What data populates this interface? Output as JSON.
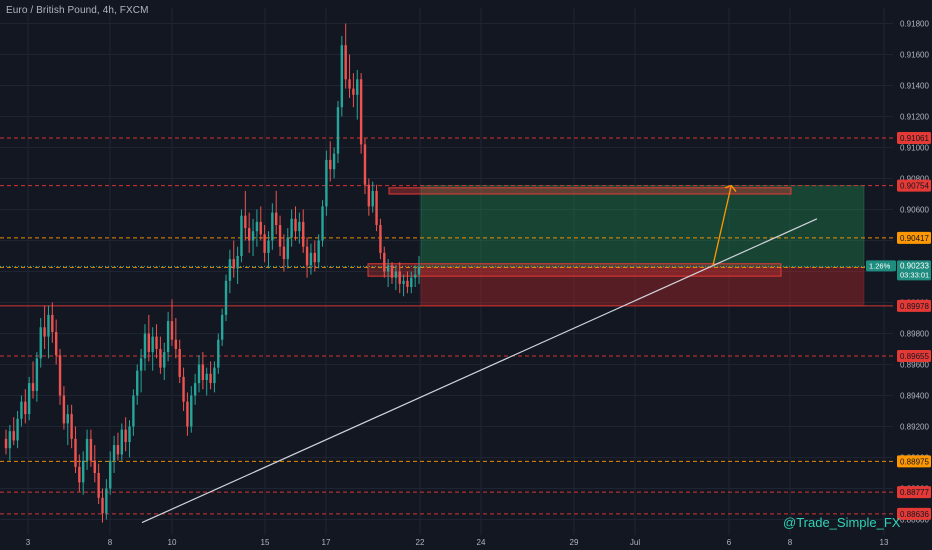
{
  "header": {
    "title": "Euro / British Pound, 4h, FXCM"
  },
  "watermark": "@Trade_Simple_FX",
  "colors": {
    "background": "#131722",
    "grid": "#1f2433",
    "text": "#b2b5be",
    "bull": "#26a69a",
    "bear": "#ef5350",
    "red_level": "#e53935",
    "orange_level": "#ff9800",
    "price_line": "#26a69a",
    "trendline": "#d1d4dc"
  },
  "chart_data": {
    "type": "candlestick",
    "symbol": "Euro / British Pound",
    "interval": "4h",
    "broker": "FXCM",
    "y_axis": {
      "range": [
        0.885,
        0.919
      ],
      "ticks": [
        "0.91800",
        "0.91600",
        "0.91400",
        "0.91200",
        "0.91000",
        "0.90800",
        "0.90600",
        "0.90400",
        "0.90200",
        "0.90000",
        "0.89800",
        "0.89600",
        "0.89400",
        "0.89200",
        "0.89000",
        "0.88800",
        "0.88600"
      ]
    },
    "x_axis": {
      "ticks": [
        "3",
        "8",
        "10",
        "15",
        "17",
        "22",
        "24",
        "29",
        "Jul",
        "6",
        "8",
        "13"
      ]
    },
    "grid": true,
    "horizontal_levels": [
      {
        "label": "0.91061",
        "value": 0.91061,
        "style": "red-dashed"
      },
      {
        "label": "0.90754",
        "value": 0.90754,
        "style": "red-dashed"
      },
      {
        "label": "0.90417",
        "value": 0.90417,
        "style": "orange-dashed"
      },
      {
        "label": "0.90227",
        "value": 0.90227,
        "style": "orange-dashed"
      },
      {
        "label": "0.89978",
        "value": 0.89978,
        "style": "red-solid"
      },
      {
        "label": "0.89655",
        "value": 0.89655,
        "style": "red-dashed"
      },
      {
        "label": "0.88975",
        "value": 0.88975,
        "style": "orange-dashed"
      },
      {
        "label": "0.88777",
        "value": 0.88777,
        "style": "red-dashed"
      },
      {
        "label": "0.88636",
        "value": 0.88636,
        "style": "red-dashed"
      }
    ],
    "current_price": {
      "value": 0.90233,
      "label": "0.90233",
      "change": "1.26%",
      "countdown": "03:33:01"
    },
    "zones": [
      {
        "kind": "resistance",
        "top": 0.9074,
        "bottom": 0.907
      },
      {
        "kind": "support",
        "top": 0.9025,
        "bottom": 0.9017
      }
    ],
    "position": {
      "entry": 0.90227,
      "target": 0.90754,
      "stop": 0.89978
    },
    "trendline": {
      "from": [
        "9",
        0.8858
      ],
      "to": [
        "8",
        0.9054
      ]
    },
    "projection_arrow": {
      "from": 0.90227,
      "to": 0.90754
    },
    "candles": [
      [
        0.8912,
        0.8918,
        0.8902,
        0.8906
      ],
      [
        0.8906,
        0.8921,
        0.8898,
        0.8917
      ],
      [
        0.8917,
        0.8926,
        0.8908,
        0.8911
      ],
      [
        0.8911,
        0.893,
        0.8906,
        0.8925
      ],
      [
        0.8925,
        0.894,
        0.892,
        0.8936
      ],
      [
        0.8936,
        0.8944,
        0.8922,
        0.8928
      ],
      [
        0.8928,
        0.8952,
        0.8924,
        0.8948
      ],
      [
        0.8948,
        0.8962,
        0.8938,
        0.8943
      ],
      [
        0.8943,
        0.8968,
        0.8936,
        0.8964
      ],
      [
        0.8964,
        0.899,
        0.8958,
        0.8984
      ],
      [
        0.8984,
        0.8998,
        0.897,
        0.8978
      ],
      [
        0.8978,
        0.8998,
        0.8964,
        0.8992
      ],
      [
        0.8992,
        0.9,
        0.8974,
        0.8981
      ],
      [
        0.8981,
        0.8989,
        0.896,
        0.8966
      ],
      [
        0.8966,
        0.897,
        0.8934,
        0.894
      ],
      [
        0.894,
        0.8946,
        0.8918,
        0.8922
      ],
      [
        0.8922,
        0.8934,
        0.8908,
        0.8928
      ],
      [
        0.8928,
        0.8934,
        0.8906,
        0.8912
      ],
      [
        0.8912,
        0.892,
        0.889,
        0.8894
      ],
      [
        0.8894,
        0.8902,
        0.8878,
        0.8884
      ],
      [
        0.8884,
        0.8904,
        0.8876,
        0.8898
      ],
      [
        0.8898,
        0.8918,
        0.8892,
        0.8912
      ],
      [
        0.8912,
        0.8918,
        0.8894,
        0.8898
      ],
      [
        0.8898,
        0.8908,
        0.8884,
        0.889
      ],
      [
        0.889,
        0.8896,
        0.887,
        0.8874
      ],
      [
        0.8874,
        0.888,
        0.8858,
        0.8864
      ],
      [
        0.8864,
        0.8886,
        0.886,
        0.888
      ],
      [
        0.888,
        0.8904,
        0.8876,
        0.8898
      ],
      [
        0.8898,
        0.8914,
        0.889,
        0.8908
      ],
      [
        0.8908,
        0.8916,
        0.8898,
        0.8902
      ],
      [
        0.8902,
        0.8922,
        0.8898,
        0.8918
      ],
      [
        0.8918,
        0.8926,
        0.8904,
        0.891
      ],
      [
        0.891,
        0.8924,
        0.89,
        0.892
      ],
      [
        0.892,
        0.8944,
        0.8914,
        0.894
      ],
      [
        0.894,
        0.896,
        0.8934,
        0.8956
      ],
      [
        0.8956,
        0.897,
        0.8942,
        0.8964
      ],
      [
        0.8964,
        0.8986,
        0.8956,
        0.898
      ],
      [
        0.898,
        0.8992,
        0.8962,
        0.8968
      ],
      [
        0.8968,
        0.8984,
        0.8956,
        0.8978
      ],
      [
        0.8978,
        0.8986,
        0.8964,
        0.897
      ],
      [
        0.897,
        0.8978,
        0.8954,
        0.8958
      ],
      [
        0.8958,
        0.8974,
        0.895,
        0.8968
      ],
      [
        0.8968,
        0.8994,
        0.8962,
        0.8988
      ],
      [
        0.8988,
        0.9002,
        0.8972,
        0.8976
      ],
      [
        0.8976,
        0.899,
        0.8964,
        0.897
      ],
      [
        0.897,
        0.8976,
        0.8948,
        0.8952
      ],
      [
        0.8952,
        0.8958,
        0.893,
        0.8936
      ],
      [
        0.8936,
        0.8942,
        0.8914,
        0.892
      ],
      [
        0.892,
        0.8946,
        0.8916,
        0.894
      ],
      [
        0.894,
        0.8954,
        0.8934,
        0.8948
      ],
      [
        0.8948,
        0.8966,
        0.8942,
        0.896
      ],
      [
        0.896,
        0.8968,
        0.8944,
        0.895
      ],
      [
        0.895,
        0.8958,
        0.894,
        0.8954
      ],
      [
        0.8954,
        0.8962,
        0.8944,
        0.8948
      ],
      [
        0.8948,
        0.8962,
        0.8942,
        0.8958
      ],
      [
        0.8958,
        0.898,
        0.8954,
        0.8976
      ],
      [
        0.8976,
        0.8996,
        0.8972,
        0.8992
      ],
      [
        0.8992,
        0.9018,
        0.8988,
        0.9014
      ],
      [
        0.9014,
        0.9034,
        0.9006,
        0.9028
      ],
      [
        0.9028,
        0.904,
        0.9016,
        0.9022
      ],
      [
        0.9022,
        0.9036,
        0.9012,
        0.903
      ],
      [
        0.903,
        0.906,
        0.9026,
        0.9056
      ],
      [
        0.9056,
        0.9072,
        0.904,
        0.9048
      ],
      [
        0.9048,
        0.9058,
        0.9032,
        0.904
      ],
      [
        0.904,
        0.9054,
        0.903,
        0.9046
      ],
      [
        0.9046,
        0.906,
        0.9036,
        0.9052
      ],
      [
        0.9052,
        0.9062,
        0.904,
        0.9044
      ],
      [
        0.9044,
        0.905,
        0.9026,
        0.9032
      ],
      [
        0.9032,
        0.9046,
        0.9022,
        0.904
      ],
      [
        0.904,
        0.9064,
        0.9034,
        0.9058
      ],
      [
        0.9058,
        0.9072,
        0.9044,
        0.905
      ],
      [
        0.905,
        0.9056,
        0.903,
        0.9036
      ],
      [
        0.9036,
        0.9044,
        0.902,
        0.9028
      ],
      [
        0.9028,
        0.9048,
        0.9022,
        0.9042
      ],
      [
        0.9042,
        0.906,
        0.9036,
        0.9054
      ],
      [
        0.9054,
        0.9062,
        0.904,
        0.9046
      ],
      [
        0.9046,
        0.9058,
        0.9038,
        0.9052
      ],
      [
        0.9052,
        0.906,
        0.9032,
        0.9036
      ],
      [
        0.9036,
        0.9042,
        0.9016,
        0.9024
      ],
      [
        0.9024,
        0.9038,
        0.9018,
        0.9032
      ],
      [
        0.9032,
        0.904,
        0.902,
        0.9026
      ],
      [
        0.9026,
        0.9044,
        0.9022,
        0.904
      ],
      [
        0.904,
        0.9066,
        0.9036,
        0.9062
      ],
      [
        0.9062,
        0.9098,
        0.9056,
        0.9092
      ],
      [
        0.9092,
        0.9104,
        0.9078,
        0.9086
      ],
      [
        0.9086,
        0.91,
        0.908,
        0.9096
      ],
      [
        0.9096,
        0.913,
        0.909,
        0.9126
      ],
      [
        0.9126,
        0.9172,
        0.912,
        0.9166
      ],
      [
        0.9166,
        0.918,
        0.9138,
        0.9144
      ],
      [
        0.9144,
        0.916,
        0.9132,
        0.9138
      ],
      [
        0.9138,
        0.9148,
        0.9126,
        0.9134
      ],
      [
        0.9134,
        0.915,
        0.9118,
        0.9144
      ],
      [
        0.9144,
        0.9148,
        0.9096,
        0.9102
      ],
      [
        0.9102,
        0.9106,
        0.907,
        0.9076
      ],
      [
        0.9076,
        0.908,
        0.9056,
        0.9062
      ],
      [
        0.9062,
        0.9078,
        0.9058,
        0.9072
      ],
      [
        0.9072,
        0.9076,
        0.9046,
        0.905
      ],
      [
        0.905,
        0.9054,
        0.9028,
        0.9032
      ],
      [
        0.9032,
        0.9036,
        0.9016,
        0.902
      ],
      [
        0.902,
        0.9028,
        0.901,
        0.9024
      ],
      [
        0.9024,
        0.9026,
        0.9012,
        0.9016
      ],
      [
        0.9016,
        0.9024,
        0.9008,
        0.902
      ],
      [
        0.902,
        0.9026,
        0.9006,
        0.9012
      ],
      [
        0.9012,
        0.9018,
        0.9004,
        0.9014
      ],
      [
        0.9014,
        0.902,
        0.9006,
        0.901
      ],
      [
        0.901,
        0.902,
        0.9006,
        0.9016
      ],
      [
        0.9016,
        0.9024,
        0.901,
        0.9018
      ],
      [
        0.9018,
        0.903,
        0.9012,
        0.9023
      ]
    ]
  }
}
